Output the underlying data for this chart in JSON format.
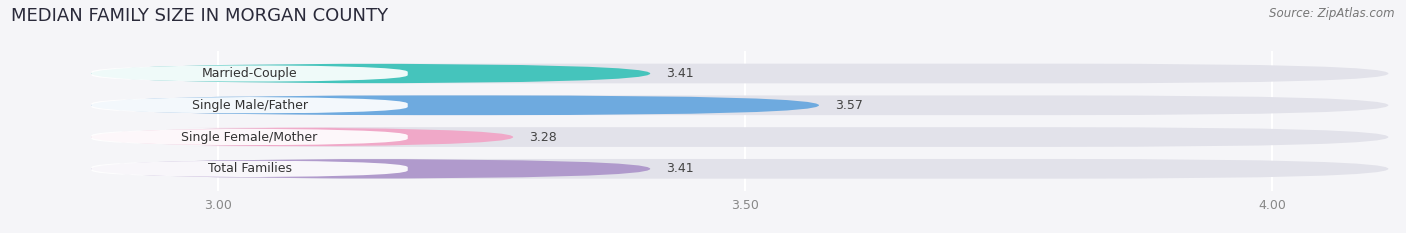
{
  "title": "MEDIAN FAMILY SIZE IN MORGAN COUNTY",
  "source": "Source: ZipAtlas.com",
  "categories": [
    "Married-Couple",
    "Single Male/Father",
    "Single Female/Mother",
    "Total Families"
  ],
  "values": [
    3.41,
    3.57,
    3.28,
    3.41
  ],
  "bar_colors": [
    "#45c4bc",
    "#6eaadf",
    "#f0a8c8",
    "#b09acc"
  ],
  "xlim": [
    2.8,
    4.12
  ],
  "xstart": 2.88,
  "xticks": [
    3.0,
    3.5,
    4.0
  ],
  "bar_height": 0.62,
  "background_color": "#f5f5f8",
  "bar_background_color": "#e2e2ea",
  "title_fontsize": 13,
  "label_fontsize": 9,
  "value_fontsize": 9,
  "tick_fontsize": 9,
  "source_fontsize": 8.5,
  "title_color": "#2a2a3a",
  "label_color": "#333333",
  "value_color": "#444444",
  "tick_color": "#888888"
}
